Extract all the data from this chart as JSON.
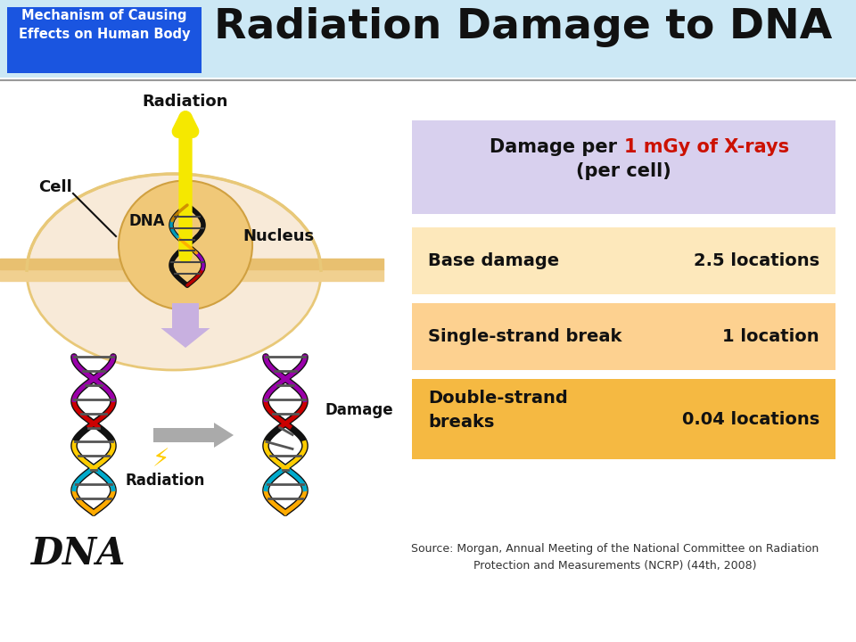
{
  "title": "Radiation Damage to DNA",
  "subtitle_box_text": "Mechanism of Causing\nEffects on Human Body",
  "subtitle_box_bg": "#1a55e0",
  "subtitle_box_text_color": "#ffffff",
  "bg_color": "#ffffff",
  "header_bg": "#cce8f5",
  "title_color": "#111111",
  "title_fontsize": 34,
  "label_radiation_top": "Radiation",
  "label_cell": "Cell",
  "label_dna_small": "DNA",
  "label_nucleus": "Nucleus",
  "label_radiation_bottom": "Radiation",
  "label_damage": "Damage",
  "label_dna_big": "DNA",
  "damage_box_bg": "#d8d0ee",
  "row1_label": "Base damage",
  "row1_value": "2.5 locations",
  "row1_bg": "#fde8bb",
  "row2_label": "Single-strand break",
  "row2_value": "1 location",
  "row2_bg": "#fdd190",
  "row3_label": "Double-strand\nbreaks",
  "row3_value": "0.04 locations",
  "row3_bg": "#f5b942",
  "source_text": "Source: Morgan, Annual Meeting of the National Committee on Radiation\nProtection and Measurements (NCRP) (44th, 2008)",
  "cell_fill": "#f5deb3",
  "nucleus_fill": "#f0c878",
  "arrow_yellow": "#f5e800",
  "arrow_purple": "#c8b0e0",
  "arrow_gray": "#aaaaaa"
}
